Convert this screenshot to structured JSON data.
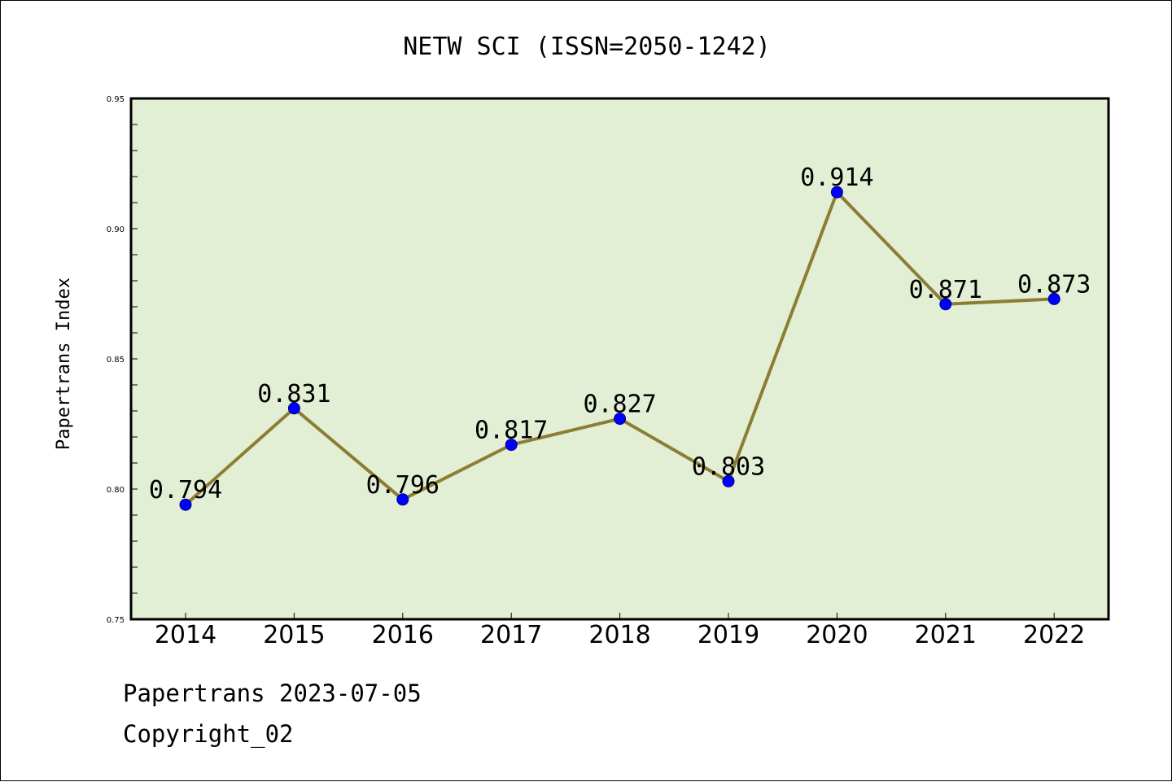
{
  "chart_data": {
    "type": "line",
    "title": "NETW SCI (ISSN=2050-1242)",
    "ylabel": "Papertrans Index",
    "xlabel": "",
    "categories": [
      "2014",
      "2015",
      "2016",
      "2017",
      "2018",
      "2019",
      "2020",
      "2021",
      "2022"
    ],
    "series": [
      {
        "values": [
          0.794,
          0.831,
          0.796,
          0.817,
          0.827,
          0.803,
          0.914,
          0.871,
          0.873
        ],
        "data_labels": [
          "0.794",
          "0.831",
          "0.796",
          "0.817",
          "0.827",
          "0.803",
          "0.914",
          "0.871",
          "0.873"
        ]
      }
    ],
    "ylim": [
      0.75,
      0.95
    ],
    "yticks": [
      "0.75",
      "0.80",
      "0.85",
      "0.90",
      "0.95"
    ],
    "grid": false,
    "legend": "none",
    "colors": {
      "plot_background": "#e2efd4",
      "line": "#8b7d34",
      "marker": "#0000ff"
    }
  },
  "footer": {
    "line1": "Papertrans 2023-07-05",
    "line2": "Copyright_02"
  }
}
